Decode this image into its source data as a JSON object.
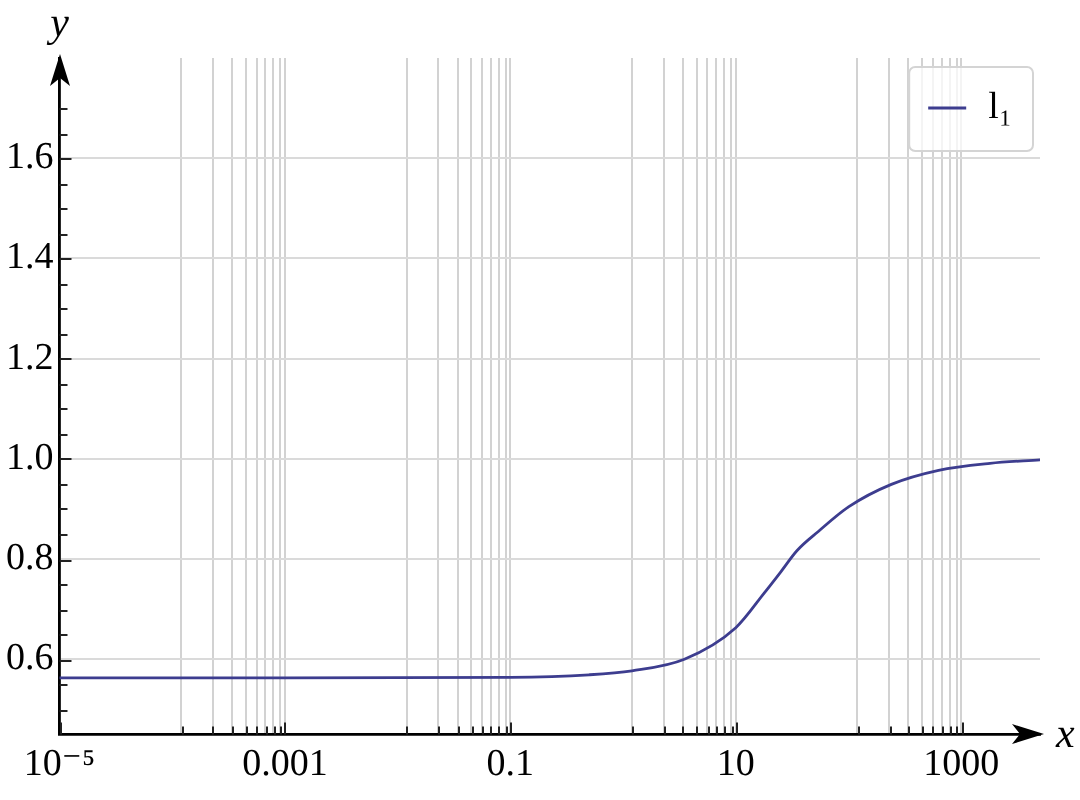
{
  "chart_data": {
    "type": "line",
    "xlabel": "x",
    "ylabel": "y",
    "log": "x",
    "grid": true,
    "legend": "top right",
    "marker": "none",
    "x": [
      1e-05,
      0.001,
      0.1,
      0.5,
      1.2,
      3.5,
      10,
      18,
      25,
      35,
      54,
      100,
      240,
      630,
      1800,
      5000
    ],
    "series": [
      {
        "name": "l₁",
        "color": "#3d3d8f",
        "values": [
          0.563,
          0.563,
          0.564,
          0.569,
          0.577,
          0.6,
          0.663,
          0.733,
          0.774,
          0.817,
          0.855,
          0.904,
          0.949,
          0.977,
          0.991,
          0.998
        ]
      }
    ],
    "xlim": [
      1e-05,
      5000
    ],
    "ylim": [
      0.45,
      1.8
    ],
    "xticks": [
      {
        "value": 1e-05,
        "label": "10⁻⁵"
      },
      {
        "value": 0.00012,
        "label": null
      },
      {
        "value": 0.00023,
        "label": null
      },
      {
        "value": 0.00034,
        "label": null
      },
      {
        "value": 0.00045,
        "label": null
      },
      {
        "value": 0.00056,
        "label": null
      },
      {
        "value": 0.00067,
        "label": null
      },
      {
        "value": 0.00079,
        "label": null
      },
      {
        "value": 0.00091,
        "label": null
      },
      0.001,
      {
        "value": 0.012,
        "label": null
      },
      {
        "value": 0.023,
        "label": null
      },
      {
        "value": 0.034,
        "label": null
      },
      {
        "value": 0.045,
        "label": null
      },
      {
        "value": 0.056,
        "label": null
      },
      {
        "value": 0.067,
        "label": null
      },
      {
        "value": 0.079,
        "label": null
      },
      {
        "value": 0.091,
        "label": null
      },
      0.1,
      {
        "value": 1.2,
        "label": null
      },
      {
        "value": 2.3,
        "label": null
      },
      {
        "value": 3.4,
        "label": null
      },
      {
        "value": 4.5,
        "label": null
      },
      {
        "value": 5.6,
        "label": null
      },
      {
        "value": 6.7,
        "label": null
      },
      {
        "value": 7.9,
        "label": null
      },
      {
        "value": 9.1,
        "label": null
      },
      10,
      {
        "value": 120,
        "label": null
      },
      {
        "value": 230,
        "label": null
      },
      {
        "value": 340,
        "label": null
      },
      {
        "value": 450,
        "label": null
      },
      {
        "value": 560,
        "label": null
      },
      {
        "value": 670,
        "label": null
      },
      {
        "value": 790,
        "label": null
      },
      {
        "value": 910,
        "label": null
      },
      1000
    ],
    "yticks": [
      {
        "value": 0.5,
        "label": null
      },
      {
        "value": 0.55,
        "label": null
      },
      0.6,
      {
        "value": 0.65,
        "label": null
      },
      {
        "value": 0.7,
        "label": null
      },
      {
        "value": 0.75,
        "label": null
      },
      0.8,
      {
        "value": 0.85,
        "label": null
      },
      {
        "value": 0.9,
        "label": null
      },
      {
        "value": 0.95,
        "label": null
      },
      {
        "value": 1,
        "label": "1.0"
      },
      {
        "value": 1.05,
        "label": null
      },
      {
        "value": 1.1,
        "label": null
      },
      {
        "value": 1.15,
        "label": null
      },
      1.2,
      {
        "value": 1.25,
        "label": null
      },
      {
        "value": 1.3,
        "label": null
      },
      {
        "value": 1.35,
        "label": null
      },
      1.4,
      {
        "value": 1.45,
        "label": null
      },
      {
        "value": 1.5,
        "label": null
      },
      {
        "value": 1.55,
        "label": null
      },
      1.6,
      {
        "value": 1.65,
        "label": null
      },
      {
        "value": 1.7,
        "label": null
      }
    ]
  }
}
